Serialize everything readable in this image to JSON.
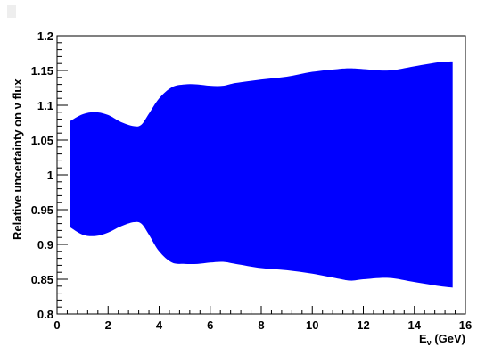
{
  "chart_data": {
    "type": "area",
    "xlabel": "E",
    "xlabel_sub": "ν",
    "xlabel_unit": " (GeV)",
    "ylabel": "Relative uncertainty on ν flux",
    "xlim": [
      0,
      16
    ],
    "ylim": [
      0.8,
      1.2
    ],
    "x_ticks": [
      "0",
      "2",
      "4",
      "6",
      "8",
      "10",
      "12",
      "14",
      "16"
    ],
    "y_ticks": [
      "0.8",
      "0.85",
      "0.9",
      "0.95",
      "1",
      "1.05",
      "1.1",
      "1.15",
      "1.2"
    ],
    "grid": false,
    "fill_color": "#0000ff",
    "band": {
      "x": [
        0.5,
        1.0,
        1.5,
        2.0,
        2.5,
        3.0,
        3.3,
        3.6,
        4.0,
        4.5,
        5.0,
        5.5,
        6.0,
        6.5,
        7.0,
        8.0,
        9.0,
        10.0,
        11.0,
        11.5,
        12.0,
        13.0,
        14.0,
        15.0,
        15.5
      ],
      "upper": [
        1.077,
        1.087,
        1.09,
        1.086,
        1.076,
        1.07,
        1.072,
        1.088,
        1.11,
        1.126,
        1.13,
        1.13,
        1.128,
        1.128,
        1.132,
        1.137,
        1.141,
        1.148,
        1.152,
        1.153,
        1.152,
        1.15,
        1.156,
        1.162,
        1.163
      ],
      "lower": [
        0.925,
        0.914,
        0.912,
        0.917,
        0.926,
        0.932,
        0.93,
        0.914,
        0.89,
        0.874,
        0.872,
        0.872,
        0.874,
        0.875,
        0.872,
        0.866,
        0.863,
        0.858,
        0.851,
        0.848,
        0.85,
        0.852,
        0.846,
        0.84,
        0.838
      ]
    }
  }
}
